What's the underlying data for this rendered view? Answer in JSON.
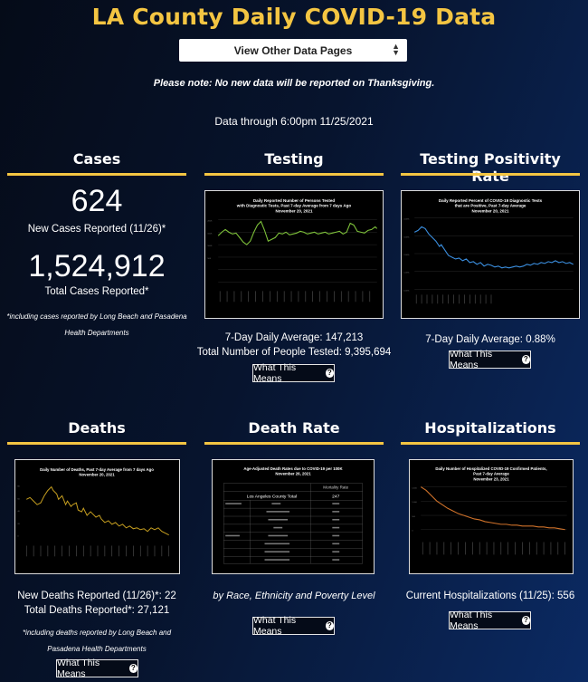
{
  "page_title": "LA County Daily COVID-19 Data",
  "nav": {
    "select_value": "View Other Data Pages"
  },
  "notice": "Please note: No new data will be reported on Thanksgiving.",
  "data_through": "Data through 6:00pm 11/25/2021",
  "colors": {
    "accent": "#f4c542",
    "testing_line": "#7ec23a",
    "positivity_line": "#3b8fe0",
    "deaths_line": "#c8a020",
    "hosp_line": "#d0722a"
  },
  "cases": {
    "title": "Cases",
    "new_cases": "624",
    "new_cases_label": "New Cases Reported (11/26)*",
    "total_cases": "1,524,912",
    "total_cases_label": "Total Cases Reported*",
    "footnote_line1": "*including cases reported by Long Beach and Pasadena",
    "footnote_line2": "Health Departments"
  },
  "testing": {
    "title": "Testing",
    "chart_title_line1": "Daily Reported Number of Persons Tested",
    "chart_title_line2": "with Diagnostic Tests, Past 7-day Average from 7 days Ago",
    "chart_title_line3": "November 20, 2021",
    "daily_avg": "7-Day Daily Average: 147,213",
    "total": "Total Number of People Tested: 9,395,694",
    "button": "What This Means"
  },
  "positivity": {
    "title": "Testing Positivity Rate",
    "chart_title_line1": "Daily Reported Percent of COVID-19 Diagnostic Tests",
    "chart_title_line2": "that are Positive, Past 7-day Average",
    "chart_title_line3": "November 20, 2021",
    "daily_avg": "7-Day Daily Average: 0.88%",
    "button": "What This Means"
  },
  "deaths": {
    "title": "Deaths",
    "chart_title_line1": "Daily Number of Deaths, Past 7-day Average from 7 days Ago",
    "chart_title_line2": "November 20, 2021",
    "new_deaths": "New Deaths Reported (11/26)*: 22",
    "total_deaths": "Total Deaths Reported*: 27,121",
    "footnote_line1": "*including deaths reported by Long Beach and",
    "footnote_line2": "Pasadena Health Departments",
    "button": "What This Means"
  },
  "death_rate": {
    "title": "Death Rate",
    "chart_title_line1": "Age-Adjusted Death Rates due to COVID-19 per 100K",
    "chart_title_line2": "November 26, 2021",
    "table_header": "Mortality Rate",
    "county_total_label": "Los Angeles County Total",
    "county_total_value": "247",
    "subtitle": "by Race, Ethnicity and Poverty Level",
    "button": "What This Means"
  },
  "hospitalizations": {
    "title": "Hospitalizations",
    "chart_title_line1": "Daily Number of Hospitalized COVID-19 Confirmed Patients,",
    "chart_title_line2": "Past 7-day Average",
    "chart_title_line3": "November 23, 2021",
    "current": "Current Hospitalizations (11/25): 556",
    "button": "What This Means"
  }
}
